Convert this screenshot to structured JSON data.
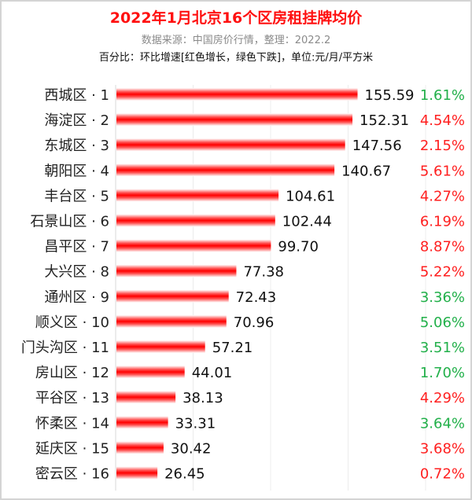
{
  "title": "2022年1月北京16个区房租挂牌均价",
  "subtitle": "数据来源：中国房价行情，整理：2022.2",
  "note": "百分比：环比增速[红色增长，绿色下跌]，单位:元/月/平方米",
  "colors": {
    "bar": "#ff0000",
    "increase_label": "#ff2020",
    "green_label": "#22b04a",
    "value_text": "#111111"
  },
  "chart_data": {
    "type": "bar",
    "orientation": "horizontal",
    "categories": [
      "西城区 · 1",
      "海淀区 · 2",
      "东城区 · 3",
      "朝阳区 · 4",
      "丰台区 · 5",
      "石景山区 · 6",
      "昌平区 · 7",
      "大兴区 · 8",
      "通州区 · 9",
      "顺义区 · 10",
      "门头沟区 · 11",
      "房山区 · 12",
      "平谷区 · 13",
      "怀柔区 · 14",
      "延庆区 · 15",
      "密云区 · 16"
    ],
    "values": [
      155.59,
      152.31,
      147.56,
      140.67,
      104.61,
      102.44,
      99.7,
      77.38,
      72.43,
      70.96,
      57.21,
      44.01,
      38.13,
      33.31,
      30.42,
      26.45
    ],
    "value_labels": [
      "155.59",
      "152.31",
      "147.56",
      "140.67",
      "104.61",
      "102.44",
      "99.70",
      "77.38",
      "72.43",
      "70.96",
      "57.21",
      "44.01",
      "38.13",
      "33.31",
      "30.42",
      "26.45"
    ],
    "percent_labels": [
      "1.61%",
      "4.54%",
      "2.15%",
      "5.61%",
      "4.27%",
      "6.19%",
      "8.87%",
      "5.22%",
      "3.36%",
      "5.06%",
      "3.51%",
      "1.70%",
      "4.29%",
      "3.64%",
      "3.68%",
      "0.72%"
    ],
    "percent_colors": [
      "green",
      "red",
      "red",
      "red",
      "red",
      "red",
      "red",
      "red",
      "green",
      "green",
      "green",
      "green",
      "red",
      "green",
      "red",
      "red"
    ],
    "xlim": [
      0,
      230
    ],
    "grid": true,
    "gridline_step": 50
  }
}
